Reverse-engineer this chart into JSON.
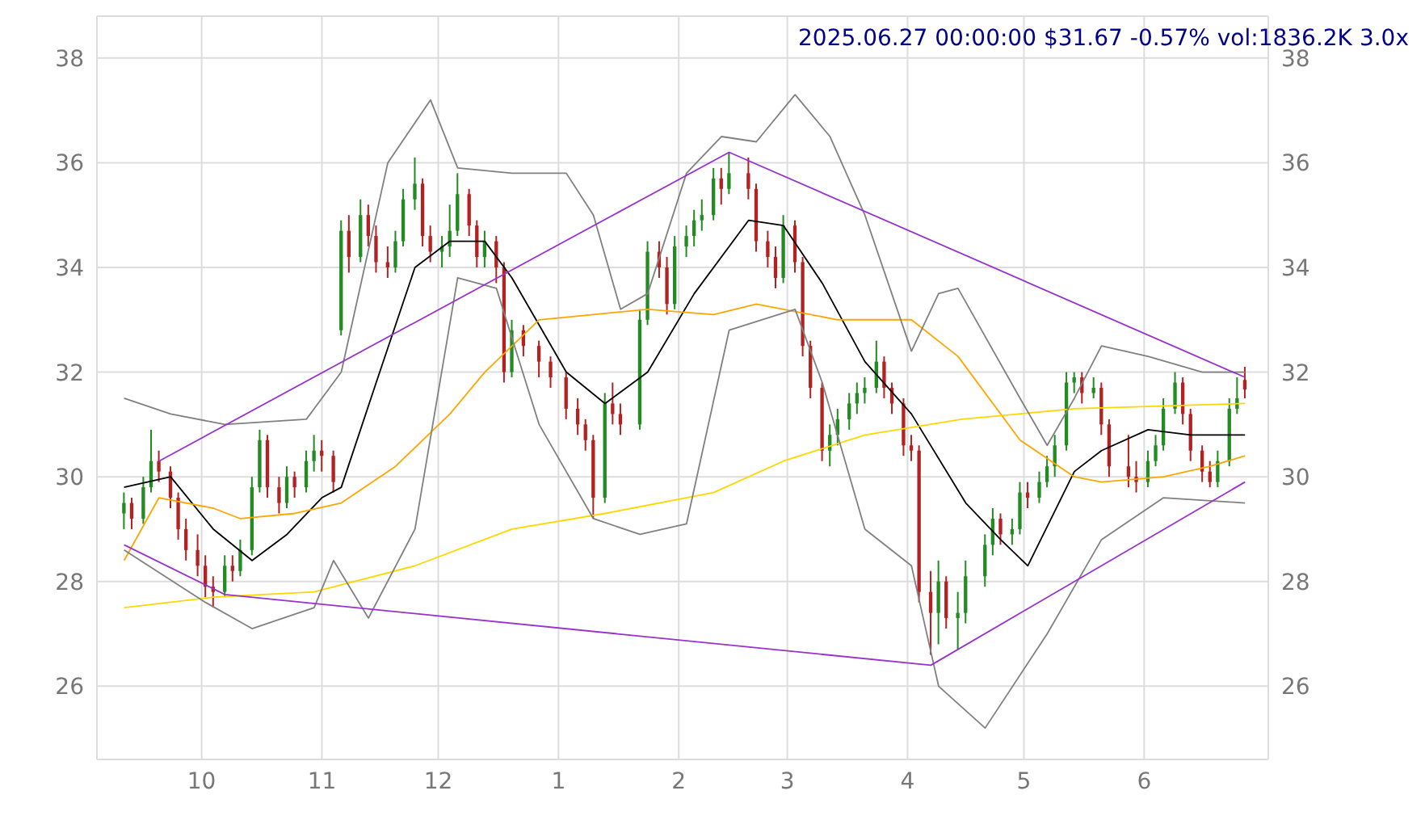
{
  "chart_data": {
    "type": "candlestick",
    "title": "2025.06.27 00:00:00 $31.67 -0.57% vol:1836.2K 3.0x",
    "x": [
      "2024-09-11",
      "2024-09-13",
      "2024-09-16",
      "2024-09-18",
      "2024-09-20",
      "2024-09-23",
      "2024-09-25",
      "2024-09-27",
      "2024-09-30",
      "2024-10-02",
      "2024-10-04",
      "2024-10-07",
      "2024-10-09",
      "2024-10-11",
      "2024-10-14",
      "2024-10-16",
      "2024-10-18",
      "2024-10-21",
      "2024-10-23",
      "2024-10-25",
      "2024-10-28",
      "2024-10-30",
      "2024-11-01",
      "2024-11-04",
      "2024-11-06",
      "2024-11-08",
      "2024-11-11",
      "2024-11-13",
      "2024-11-15",
      "2024-11-18",
      "2024-11-20",
      "2024-11-22",
      "2024-11-25",
      "2024-11-27",
      "2024-11-29",
      "2024-12-02",
      "2024-12-04",
      "2024-12-06",
      "2024-12-09",
      "2024-12-11",
      "2024-12-13",
      "2024-12-16",
      "2024-12-18",
      "2024-12-20",
      "2024-12-23",
      "2024-12-27",
      "2024-12-30",
      "2025-01-03",
      "2025-01-06",
      "2025-01-08",
      "2025-01-10",
      "2025-01-13",
      "2025-01-15",
      "2025-01-17",
      "2025-01-22",
      "2025-01-24",
      "2025-01-27",
      "2025-01-29",
      "2025-01-31",
      "2025-02-03",
      "2025-02-05",
      "2025-02-07",
      "2025-02-10",
      "2025-02-12",
      "2025-02-14",
      "2025-02-19",
      "2025-02-21",
      "2025-02-24",
      "2025-02-26",
      "2025-02-28",
      "2025-03-03",
      "2025-03-05",
      "2025-03-07",
      "2025-03-10",
      "2025-03-12",
      "2025-03-14",
      "2025-03-17",
      "2025-03-19",
      "2025-03-21",
      "2025-03-24",
      "2025-03-26",
      "2025-03-28",
      "2025-03-31",
      "2025-04-02",
      "2025-04-04",
      "2025-04-07",
      "2025-04-09",
      "2025-04-11",
      "2025-04-14",
      "2025-04-16",
      "2025-04-21",
      "2025-04-23",
      "2025-04-25",
      "2025-04-28",
      "2025-04-30",
      "2025-05-02",
      "2025-05-05",
      "2025-05-07",
      "2025-05-09",
      "2025-05-12",
      "2025-05-14",
      "2025-05-16",
      "2025-05-19",
      "2025-05-21",
      "2025-05-23",
      "2025-05-28",
      "2025-05-30",
      "2025-06-02",
      "2025-06-04",
      "2025-06-06",
      "2025-06-09",
      "2025-06-11",
      "2025-06-13",
      "2025-06-16",
      "2025-06-18",
      "2025-06-20",
      "2025-06-23",
      "2025-06-25",
      "2025-06-27"
    ],
    "ohlc": [
      [
        29.3,
        29.7,
        29.0,
        29.5
      ],
      [
        29.5,
        29.6,
        29.0,
        29.2
      ],
      [
        29.2,
        30.0,
        29.1,
        29.8
      ],
      [
        29.8,
        30.9,
        29.7,
        30.3
      ],
      [
        30.3,
        30.5,
        29.9,
        30.1
      ],
      [
        30.1,
        30.2,
        29.4,
        29.6
      ],
      [
        29.6,
        29.7,
        28.8,
        29.0
      ],
      [
        29.0,
        29.2,
        28.4,
        28.6
      ],
      [
        28.6,
        28.9,
        28.1,
        28.3
      ],
      [
        28.3,
        28.5,
        27.7,
        27.9
      ],
      [
        27.9,
        28.1,
        27.5,
        27.8
      ],
      [
        27.8,
        28.5,
        27.7,
        28.3
      ],
      [
        28.3,
        28.5,
        28.0,
        28.2
      ],
      [
        28.2,
        28.8,
        28.1,
        28.6
      ],
      [
        28.6,
        30.0,
        28.5,
        29.8
      ],
      [
        29.8,
        30.9,
        29.7,
        30.7
      ],
      [
        30.7,
        30.8,
        29.6,
        29.8
      ],
      [
        29.8,
        30.0,
        29.3,
        29.5
      ],
      [
        29.5,
        30.2,
        29.4,
        30.0
      ],
      [
        30.0,
        30.1,
        29.6,
        29.8
      ],
      [
        29.8,
        30.5,
        29.7,
        30.3
      ],
      [
        30.3,
        30.8,
        30.1,
        30.5
      ],
      [
        30.5,
        30.7,
        30.1,
        30.4
      ],
      [
        30.4,
        30.5,
        29.7,
        29.9
      ],
      [
        32.8,
        34.9,
        32.7,
        34.7
      ],
      [
        34.7,
        35.0,
        33.9,
        34.2
      ],
      [
        34.2,
        35.3,
        34.1,
        35.0
      ],
      [
        35.0,
        35.2,
        34.4,
        34.6
      ],
      [
        34.6,
        34.8,
        33.9,
        34.1
      ],
      [
        34.1,
        34.4,
        33.8,
        34.0
      ],
      [
        34.0,
        34.7,
        33.9,
        34.5
      ],
      [
        34.5,
        35.5,
        34.4,
        35.3
      ],
      [
        35.3,
        36.1,
        35.1,
        35.6
      ],
      [
        35.6,
        35.7,
        34.4,
        34.6
      ],
      [
        34.6,
        34.8,
        34.1,
        34.3
      ],
      [
        34.3,
        34.6,
        34.0,
        34.4
      ],
      [
        34.4,
        35.2,
        34.2,
        34.7
      ],
      [
        34.7,
        35.8,
        34.6,
        35.4
      ],
      [
        35.4,
        35.5,
        34.6,
        34.8
      ],
      [
        34.8,
        34.9,
        34.0,
        34.2
      ],
      [
        34.2,
        34.7,
        34.0,
        34.5
      ],
      [
        34.5,
        34.6,
        33.7,
        34.0
      ],
      [
        34.0,
        34.1,
        31.8,
        32.0
      ],
      [
        32.0,
        33.0,
        31.9,
        32.8
      ],
      [
        32.8,
        32.9,
        32.3,
        32.5
      ],
      [
        32.5,
        32.6,
        31.9,
        32.2
      ],
      [
        32.2,
        32.3,
        31.7,
        31.9
      ],
      [
        31.9,
        32.0,
        31.1,
        31.3
      ],
      [
        31.3,
        31.5,
        30.8,
        31.0
      ],
      [
        31.0,
        31.1,
        30.5,
        30.7
      ],
      [
        30.7,
        30.8,
        29.2,
        29.6
      ],
      [
        29.6,
        31.6,
        29.5,
        31.4
      ],
      [
        31.4,
        31.8,
        31.0,
        31.2
      ],
      [
        31.2,
        31.4,
        30.8,
        31.0
      ],
      [
        31.0,
        33.2,
        30.9,
        33.0
      ],
      [
        33.0,
        34.5,
        32.9,
        34.3
      ],
      [
        34.3,
        34.5,
        33.8,
        34.0
      ],
      [
        34.0,
        34.2,
        33.1,
        33.3
      ],
      [
        33.3,
        34.6,
        33.2,
        34.4
      ],
      [
        34.4,
        34.8,
        34.2,
        34.6
      ],
      [
        34.6,
        35.1,
        34.4,
        34.9
      ],
      [
        34.9,
        35.3,
        34.7,
        35.0
      ],
      [
        35.0,
        35.9,
        34.9,
        35.7
      ],
      [
        35.7,
        35.9,
        35.2,
        35.5
      ],
      [
        35.5,
        36.2,
        35.4,
        35.8
      ],
      [
        35.8,
        36.1,
        35.3,
        35.5
      ],
      [
        35.5,
        35.6,
        34.3,
        34.5
      ],
      [
        34.5,
        34.7,
        34.0,
        34.2
      ],
      [
        34.2,
        34.4,
        33.6,
        33.8
      ],
      [
        33.8,
        35.0,
        33.7,
        34.8
      ],
      [
        34.8,
        34.9,
        33.9,
        34.1
      ],
      [
        34.1,
        34.2,
        32.3,
        32.5
      ],
      [
        32.5,
        32.6,
        31.5,
        31.7
      ],
      [
        31.7,
        31.8,
        30.3,
        30.5
      ],
      [
        30.5,
        31.0,
        30.2,
        30.8
      ],
      [
        30.8,
        31.3,
        30.6,
        31.1
      ],
      [
        31.1,
        31.6,
        30.9,
        31.4
      ],
      [
        31.4,
        31.8,
        31.2,
        31.6
      ],
      [
        31.6,
        31.9,
        31.4,
        31.7
      ],
      [
        31.7,
        32.6,
        31.6,
        32.2
      ],
      [
        32.2,
        32.3,
        31.5,
        31.7
      ],
      [
        31.7,
        31.8,
        31.2,
        31.4
      ],
      [
        31.4,
        31.5,
        30.4,
        30.6
      ],
      [
        30.6,
        30.8,
        30.3,
        30.5
      ],
      [
        30.5,
        30.6,
        27.6,
        27.8
      ],
      [
        27.8,
        28.2,
        26.6,
        27.4
      ],
      [
        27.4,
        28.4,
        26.8,
        28.0
      ],
      [
        28.0,
        28.1,
        27.1,
        27.3
      ],
      [
        27.3,
        27.8,
        26.7,
        27.4
      ],
      [
        27.4,
        28.4,
        27.2,
        28.1
      ],
      [
        28.1,
        28.9,
        27.9,
        28.7
      ],
      [
        28.7,
        29.4,
        28.5,
        29.2
      ],
      [
        29.2,
        29.3,
        28.7,
        28.9
      ],
      [
        28.9,
        29.2,
        28.7,
        29.0
      ],
      [
        29.0,
        29.9,
        28.9,
        29.7
      ],
      [
        29.7,
        29.9,
        29.4,
        29.6
      ],
      [
        29.6,
        30.1,
        29.5,
        29.9
      ],
      [
        29.9,
        30.4,
        29.8,
        30.2
      ],
      [
        30.2,
        30.8,
        30.0,
        30.6
      ],
      [
        30.6,
        32.0,
        30.5,
        31.8
      ],
      [
        31.8,
        32.0,
        31.6,
        31.9
      ],
      [
        31.9,
        32.0,
        31.4,
        31.6
      ],
      [
        31.6,
        31.9,
        31.5,
        31.7
      ],
      [
        31.7,
        31.8,
        30.8,
        31.0
      ],
      [
        31.0,
        31.1,
        30.0,
        30.2
      ],
      [
        30.2,
        30.8,
        29.8,
        30.0
      ],
      [
        30.0,
        30.3,
        29.7,
        29.9
      ],
      [
        29.9,
        30.5,
        29.8,
        30.3
      ],
      [
        30.3,
        30.8,
        30.2,
        30.6
      ],
      [
        30.6,
        31.5,
        30.5,
        31.3
      ],
      [
        31.3,
        32.0,
        31.2,
        31.8
      ],
      [
        31.8,
        31.9,
        31.0,
        31.2
      ],
      [
        31.2,
        31.3,
        30.3,
        30.5
      ],
      [
        30.5,
        30.6,
        29.9,
        30.1
      ],
      [
        30.1,
        30.3,
        29.8,
        29.9
      ],
      [
        29.9,
        30.5,
        29.8,
        30.3
      ],
      [
        30.3,
        31.5,
        30.2,
        31.3
      ],
      [
        31.3,
        31.9,
        31.2,
        31.5
      ],
      [
        31.85,
        32.1,
        31.5,
        31.67
      ]
    ],
    "series": [
      {
        "type": "line",
        "color": "#000000",
        "x": [
          "2024-09-11",
          "2024-09-23",
          "2024-10-04",
          "2024-10-14",
          "2024-10-23",
          "2024-11-01",
          "2024-11-06",
          "2024-11-15",
          "2024-11-25",
          "2024-12-04",
          "2024-12-13",
          "2024-12-20",
          "2025-01-03",
          "2025-01-13",
          "2025-01-24",
          "2025-02-05",
          "2025-02-19",
          "2025-02-28",
          "2025-03-10",
          "2025-03-21",
          "2025-04-02",
          "2025-04-16",
          "2025-04-25",
          "2025-05-02",
          "2025-05-14",
          "2025-05-21",
          "2025-06-02",
          "2025-06-13",
          "2025-06-27"
        ],
        "values": [
          29.8,
          30.0,
          29.0,
          28.4,
          28.9,
          29.6,
          29.8,
          31.8,
          34.0,
          34.5,
          34.5,
          33.8,
          32.0,
          31.4,
          32.0,
          33.5,
          34.9,
          34.8,
          33.7,
          32.2,
          31.2,
          29.5,
          28.8,
          28.3,
          30.1,
          30.5,
          30.9,
          30.8,
          30.8
        ]
      },
      {
        "type": "line",
        "color": "#ffa500",
        "x": [
          "2024-09-11",
          "2024-09-20",
          "2024-10-04",
          "2024-10-11",
          "2024-10-25",
          "2024-11-06",
          "2024-11-20",
          "2024-12-04",
          "2024-12-13",
          "2024-12-27",
          "2025-01-10",
          "2025-01-24",
          "2025-02-10",
          "2025-02-21",
          "2025-03-14",
          "2025-04-02",
          "2025-04-14",
          "2025-04-30",
          "2025-05-14",
          "2025-05-21",
          "2025-06-06",
          "2025-06-18",
          "2025-06-27"
        ],
        "values": [
          28.4,
          29.6,
          29.4,
          29.2,
          29.3,
          29.5,
          30.2,
          31.2,
          32.0,
          33.0,
          33.1,
          33.2,
          33.1,
          33.3,
          33.0,
          33.0,
          32.3,
          30.7,
          30.0,
          29.9,
          30.0,
          30.2,
          30.4
        ]
      },
      {
        "type": "line",
        "color": "#ffd700",
        "x": [
          "2024-09-11",
          "2024-10-04",
          "2024-10-30",
          "2024-11-25",
          "2024-12-20",
          "2025-01-13",
          "2025-02-10",
          "2025-02-28",
          "2025-03-21",
          "2025-04-15",
          "2025-05-14",
          "2025-06-27"
        ],
        "values": [
          27.5,
          27.7,
          27.8,
          28.3,
          29.0,
          29.3,
          29.7,
          30.3,
          30.8,
          31.1,
          31.3,
          31.4
        ]
      },
      {
        "type": "line",
        "color": "#808080",
        "x": [
          "2024-09-11",
          "2024-09-23",
          "2024-10-07",
          "2024-10-28",
          "2024-11-06",
          "2024-11-18",
          "2024-11-29",
          "2024-12-06",
          "2024-12-20",
          "2025-01-03",
          "2025-01-10",
          "2025-01-17",
          "2025-01-24",
          "2025-02-03",
          "2025-02-12",
          "2025-02-21",
          "2025-03-03",
          "2025-03-12",
          "2025-03-21",
          "2025-04-02",
          "2025-04-09",
          "2025-04-14",
          "2025-04-30",
          "2025-05-07",
          "2025-05-14",
          "2025-05-21",
          "2025-06-02",
          "2025-06-16",
          "2025-06-27"
        ],
        "values": [
          31.5,
          31.2,
          31.0,
          31.1,
          32.0,
          36.0,
          37.2,
          35.9,
          35.8,
          35.8,
          35.0,
          33.2,
          33.5,
          35.8,
          36.5,
          36.4,
          37.3,
          36.5,
          35.0,
          32.4,
          33.5,
          33.6,
          31.5,
          30.6,
          31.5,
          32.5,
          32.3,
          32.0,
          32.0
        ]
      },
      {
        "type": "line",
        "color": "#808080",
        "x": [
          "2024-09-11",
          "2024-10-02",
          "2024-10-14",
          "2024-10-30",
          "2024-11-04",
          "2024-11-13",
          "2024-11-25",
          "2024-12-06",
          "2024-12-16",
          "2024-12-27",
          "2025-01-10",
          "2025-01-22",
          "2025-02-03",
          "2025-02-14",
          "2025-03-03",
          "2025-03-10",
          "2025-03-21",
          "2025-04-02",
          "2025-04-09",
          "2025-04-21",
          "2025-05-07",
          "2025-05-21",
          "2025-06-06",
          "2025-06-27"
        ],
        "values": [
          28.6,
          27.6,
          27.1,
          27.5,
          28.4,
          27.3,
          29.0,
          33.8,
          33.6,
          31.0,
          29.2,
          28.9,
          29.1,
          32.8,
          33.2,
          31.8,
          29.0,
          28.3,
          26.0,
          25.2,
          27.0,
          28.8,
          29.6,
          29.5
        ]
      },
      {
        "type": "line",
        "color": "#9932cc",
        "x": [
          "2024-09-20",
          "2025-02-14",
          "2025-06-27"
        ],
        "values": [
          30.3,
          36.2,
          31.9
        ]
      },
      {
        "type": "line",
        "color": "#9932cc",
        "x": [
          "2024-09-11",
          "2024-10-07",
          "2025-04-07",
          "2025-06-27"
        ],
        "values": [
          28.7,
          27.75,
          26.4,
          29.9
        ]
      }
    ],
    "xlim": [
      "2024-09-04",
      "2025-07-03"
    ],
    "xticks": [
      {
        "value": "2024-10-01",
        "label": "10"
      },
      {
        "value": "2024-11-01",
        "label": "11"
      },
      {
        "value": "2024-12-01",
        "label": "12"
      },
      {
        "value": "2025-01-01",
        "label": "1"
      },
      {
        "value": "2025-02-01",
        "label": "2"
      },
      {
        "value": "2025-03-01",
        "label": "3"
      },
      {
        "value": "2025-04-01",
        "label": "4"
      },
      {
        "value": "2025-05-01",
        "label": "5"
      },
      {
        "value": "2025-06-01",
        "label": "6"
      }
    ],
    "ylim": [
      24.6,
      38.8
    ],
    "yticks": [
      26,
      28,
      30,
      32,
      34,
      36,
      38
    ],
    "y2lim": [
      24.6,
      38.8
    ],
    "y2ticks": [
      26,
      28,
      30,
      32,
      34,
      36,
      38
    ],
    "grid": true,
    "legend": false
  }
}
